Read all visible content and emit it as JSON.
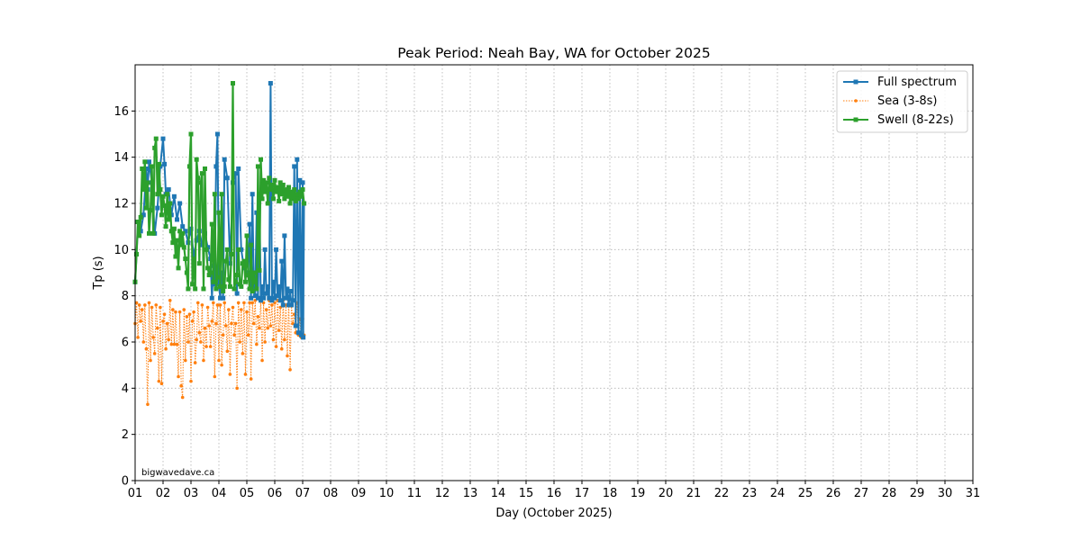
{
  "chart_data": {
    "type": "line",
    "title": "Peak Period: Neah Bay, WA for October 2025",
    "xlabel": "Day (October 2025)",
    "ylabel": "Tp (s)",
    "xlim": [
      1,
      31
    ],
    "ylim": [
      0,
      18
    ],
    "x_ticks": [
      "01",
      "02",
      "03",
      "04",
      "05",
      "06",
      "07",
      "08",
      "09",
      "10",
      "11",
      "12",
      "13",
      "14",
      "15",
      "16",
      "17",
      "18",
      "19",
      "20",
      "21",
      "22",
      "23",
      "24",
      "25",
      "26",
      "27",
      "28",
      "29",
      "30",
      "31"
    ],
    "y_ticks": [
      0,
      2,
      4,
      6,
      8,
      10,
      12,
      14,
      16
    ],
    "grid": true,
    "legend_position": "top-right",
    "watermark": "bigwavedave.ca",
    "colors": {
      "full": "#1f77b4",
      "sea": "#ff7f0e",
      "swell": "#2ca02c"
    },
    "series": [
      {
        "name": "Full spectrum",
        "x": [
          1.0,
          1.05,
          1.1,
          1.2,
          1.3,
          1.4,
          1.45,
          1.5,
          1.6,
          1.7,
          1.8,
          1.9,
          2.0,
          2.05,
          2.1,
          2.2,
          2.3,
          2.4,
          2.5,
          2.6,
          2.7,
          2.8,
          2.9,
          3.0,
          3.1,
          3.2,
          3.3,
          3.4,
          3.5,
          3.6,
          3.7,
          3.75,
          3.8,
          3.85,
          3.9,
          3.95,
          4.0,
          4.05,
          4.1,
          4.15,
          4.2,
          4.3,
          4.4,
          4.5,
          4.6,
          4.65,
          4.7,
          4.8,
          4.9,
          5.0,
          5.05,
          5.1,
          5.15,
          5.2,
          5.25,
          5.3,
          5.35,
          5.4,
          5.45,
          5.5,
          5.55,
          5.6,
          5.65,
          5.7,
          5.75,
          5.8,
          5.85,
          5.9,
          5.95,
          6.0,
          6.05,
          6.1,
          6.15,
          6.2,
          6.25,
          6.3,
          6.35,
          6.4,
          6.45,
          6.5,
          6.55,
          6.6,
          6.65,
          6.7,
          6.75,
          6.8,
          6.85,
          6.9,
          6.95,
          7.0,
          7.02,
          7.05
        ],
        "y": [
          8.6,
          9.8,
          11.2,
          10.8,
          11.5,
          13.5,
          12.6,
          13.8,
          12.9,
          10.7,
          11.8,
          13.6,
          14.8,
          13.7,
          12.4,
          12.6,
          11.5,
          12.3,
          11.3,
          12.0,
          11.0,
          10.8,
          10.3,
          10.9,
          9.7,
          10.4,
          10.8,
          10.2,
          10.7,
          10.1,
          9.6,
          7.9,
          9.3,
          8.5,
          13.6,
          15.0,
          8.5,
          7.9,
          9.0,
          7.9,
          13.9,
          13.1,
          9.4,
          12.9,
          13.3,
          8.1,
          13.5,
          10.0,
          9.2,
          8.9,
          9.0,
          11.1,
          7.9,
          12.4,
          8.3,
          8.0,
          11.6,
          7.9,
          12.4,
          7.8,
          8.4,
          7.9,
          10.0,
          8.1,
          8.4,
          7.9,
          17.2,
          7.8,
          8.6,
          7.9,
          10.0,
          8.0,
          8.4,
          7.8,
          9.5,
          7.6,
          10.6,
          7.9,
          8.3,
          7.6,
          8.2,
          7.6,
          7.8,
          13.6,
          6.7,
          13.9,
          6.4,
          13.0,
          6.3,
          12.9,
          6.2,
          12.0
        ]
      },
      {
        "name": "Sea (3-8s)",
        "x": [
          1.0,
          1.05,
          1.1,
          1.15,
          1.2,
          1.25,
          1.3,
          1.35,
          1.4,
          1.45,
          1.5,
          1.55,
          1.6,
          1.65,
          1.7,
          1.75,
          1.8,
          1.85,
          1.9,
          1.95,
          2.0,
          2.05,
          2.1,
          2.15,
          2.2,
          2.25,
          2.3,
          2.35,
          2.4,
          2.45,
          2.5,
          2.55,
          2.6,
          2.65,
          2.7,
          2.75,
          2.8,
          2.85,
          2.9,
          2.95,
          3.0,
          3.05,
          3.1,
          3.15,
          3.2,
          3.25,
          3.3,
          3.35,
          3.4,
          3.45,
          3.5,
          3.55,
          3.6,
          3.65,
          3.7,
          3.75,
          3.8,
          3.85,
          3.9,
          3.95,
          4.0,
          4.05,
          4.1,
          4.15,
          4.2,
          4.25,
          4.3,
          4.35,
          4.4,
          4.45,
          4.5,
          4.55,
          4.6,
          4.65,
          4.7,
          4.75,
          4.8,
          4.85,
          4.9,
          4.95,
          5.0,
          5.05,
          5.1,
          5.15,
          5.2,
          5.25,
          5.3,
          5.35,
          5.4,
          5.45,
          5.5,
          5.55,
          5.6,
          5.65,
          5.7,
          5.75,
          5.8,
          5.85,
          5.9,
          5.95,
          6.0,
          6.05,
          6.1,
          6.15,
          6.2,
          6.25,
          6.3,
          6.35,
          6.4,
          6.45,
          6.5,
          6.55,
          6.6,
          6.65,
          6.7,
          6.75,
          6.8,
          6.85,
          6.9,
          6.95,
          7.0,
          7.05
        ],
        "y": [
          6.8,
          7.7,
          6.2,
          7.6,
          6.9,
          7.4,
          6.0,
          7.6,
          5.7,
          3.3,
          7.7,
          5.2,
          7.5,
          6.2,
          5.5,
          7.6,
          6.6,
          4.3,
          7.5,
          4.2,
          6.9,
          7.2,
          5.7,
          6.8,
          6.1,
          7.8,
          5.9,
          7.4,
          5.9,
          7.3,
          5.9,
          4.5,
          7.3,
          4.1,
          3.6,
          7.4,
          5.2,
          7.1,
          6.0,
          7.2,
          4.3,
          6.9,
          7.3,
          5.1,
          6.1,
          7.7,
          6.4,
          6.0,
          7.6,
          5.2,
          6.6,
          5.8,
          7.5,
          6.7,
          5.8,
          6.9,
          7.7,
          4.5,
          6.8,
          7.6,
          5.2,
          7.6,
          5.0,
          6.3,
          7.7,
          6.7,
          5.6,
          7.4,
          4.6,
          6.8,
          7.5,
          6.3,
          6.8,
          4.0,
          7.7,
          6.0,
          7.4,
          5.5,
          7.7,
          4.6,
          7.3,
          6.3,
          7.7,
          4.4,
          7.7,
          6.8,
          7.8,
          5.9,
          7.1,
          6.6,
          7.8,
          5.2,
          7.7,
          6.0,
          7.4,
          6.6,
          7.8,
          6.7,
          7.6,
          6.1,
          7.7,
          5.8,
          7.8,
          6.5,
          7.5,
          5.7,
          7.8,
          6.1,
          7.6,
          5.4,
          7.8,
          4.8,
          7.6,
          6.8,
          7.2,
          6.4,
          7.7,
          6.3,
          7.0,
          6.2,
          7.0,
          6.3
        ]
      },
      {
        "name": "Swell (8-22s)",
        "x": [
          1.0,
          1.05,
          1.1,
          1.15,
          1.2,
          1.25,
          1.3,
          1.35,
          1.4,
          1.45,
          1.5,
          1.55,
          1.6,
          1.65,
          1.7,
          1.75,
          1.8,
          1.85,
          1.9,
          1.95,
          2.0,
          2.05,
          2.1,
          2.15,
          2.2,
          2.25,
          2.3,
          2.35,
          2.4,
          2.45,
          2.5,
          2.55,
          2.6,
          2.65,
          2.7,
          2.75,
          2.8,
          2.85,
          2.9,
          2.95,
          3.0,
          3.05,
          3.1,
          3.15,
          3.2,
          3.25,
          3.3,
          3.35,
          3.4,
          3.45,
          3.5,
          3.55,
          3.6,
          3.65,
          3.7,
          3.75,
          3.8,
          3.85,
          3.9,
          3.95,
          4.0,
          4.05,
          4.1,
          4.15,
          4.2,
          4.25,
          4.3,
          4.35,
          4.4,
          4.45,
          4.5,
          4.55,
          4.6,
          4.65,
          4.7,
          4.75,
          4.8,
          4.85,
          4.9,
          4.95,
          5.0,
          5.05,
          5.1,
          5.15,
          5.2,
          5.25,
          5.3,
          5.35,
          5.4,
          5.45,
          5.5,
          5.55,
          5.6,
          5.65,
          5.7,
          5.75,
          5.8,
          5.85,
          5.9,
          5.95,
          6.0,
          6.05,
          6.1,
          6.15,
          6.2,
          6.25,
          6.3,
          6.35,
          6.4,
          6.45,
          6.5,
          6.55,
          6.6,
          6.65,
          6.7,
          6.75,
          6.8,
          6.85,
          6.9,
          6.95,
          7.0,
          7.05
        ],
        "y": [
          8.6,
          9.8,
          11.2,
          10.6,
          11.4,
          13.5,
          12.6,
          13.8,
          11.8,
          12.9,
          10.7,
          11.7,
          13.6,
          10.7,
          14.4,
          14.8,
          12.4,
          13.7,
          12.6,
          11.5,
          12.3,
          11.9,
          11.0,
          12.4,
          11.3,
          12.0,
          10.8,
          10.3,
          10.9,
          9.7,
          10.4,
          9.2,
          10.8,
          10.2,
          10.7,
          10.1,
          9.6,
          9.0,
          8.3,
          13.6,
          15.0,
          8.5,
          9.6,
          8.3,
          13.9,
          13.1,
          9.4,
          12.9,
          13.3,
          8.3,
          13.5,
          10.0,
          9.2,
          8.9,
          9.0,
          11.1,
          8.6,
          12.4,
          8.3,
          8.8,
          11.6,
          8.4,
          12.4,
          8.2,
          8.4,
          9.5,
          10.0,
          8.7,
          8.4,
          9.8,
          17.2,
          8.3,
          8.6,
          8.9,
          10.0,
          8.5,
          8.4,
          9.4,
          9.5,
          8.6,
          10.6,
          8.9,
          8.3,
          10.2,
          8.2,
          9.0,
          8.6,
          8.3,
          13.6,
          9.1,
          13.9,
          12.2,
          13.0,
          12.5,
          12.9,
          12.0,
          13.1,
          12.6,
          12.8,
          12.2,
          13.0,
          12.5,
          12.7,
          12.1,
          12.9,
          12.4,
          12.8,
          12.2,
          12.6,
          12.3,
          12.7,
          12.0,
          12.5,
          12.2,
          12.6,
          12.1,
          12.4,
          12.2,
          12.5,
          12.3,
          12.6,
          12.0
        ]
      }
    ]
  }
}
